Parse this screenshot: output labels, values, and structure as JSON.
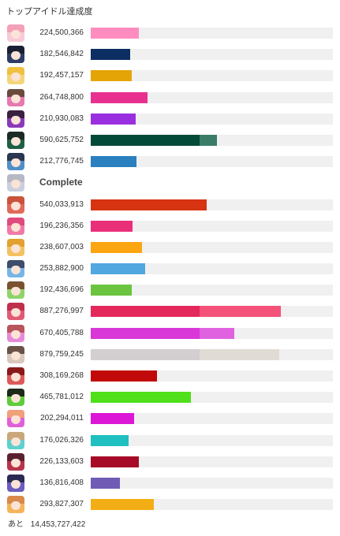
{
  "title": "トップアイドル達成度",
  "remaining_label": "あと",
  "remaining_value": "14,453,727,422",
  "target": 1000000000,
  "rows": [
    {
      "value": "224,500,366",
      "amount": 224500366,
      "color": "#ff8cbf",
      "over_color": "#ff8cbf",
      "avatar_bg": "#f7c9d9",
      "hair": "#f3a0b8"
    },
    {
      "value": "182,546,842",
      "amount": 182546842,
      "color": "#0c2e62",
      "over_color": "#0c2e62",
      "avatar_bg": "#2c3e66",
      "hair": "#1a1f33"
    },
    {
      "value": "192,457,157",
      "amount": 192457157,
      "color": "#e5a406",
      "over_color": "#e5a406",
      "avatar_bg": "#f4d57a",
      "hair": "#f0c040"
    },
    {
      "value": "264,748,800",
      "amount": 264748800,
      "color": "#e8308f",
      "over_color": "#e8308f",
      "avatar_bg": "#e67ab0",
      "hair": "#6b4a3e"
    },
    {
      "value": "210,930,083",
      "amount": 210930083,
      "color": "#9a2fe0",
      "over_color": "#9a2fe0",
      "avatar_bg": "#8a3ab9",
      "hair": "#3a2140"
    },
    {
      "value": "590,625,752",
      "amount": 590625752,
      "color": "#044a39",
      "over_color": "#3a7c68",
      "avatar_bg": "#1f5e48",
      "hair": "#1c2a24"
    },
    {
      "value": "212,776,745",
      "amount": 212776745,
      "color": "#2a7fbf",
      "over_color": "#2a7fbf",
      "avatar_bg": "#4f8fc7",
      "hair": "#2a3550"
    },
    {
      "complete": "Complete",
      "amount": 1000000000,
      "color": "#f0f0f0",
      "over_color": "#f0f0f0",
      "avatar_bg": "#c8d0de",
      "hair": "#b6b9c4"
    },
    {
      "value": "540,033,913",
      "amount": 540033913,
      "color": "#d63413",
      "over_color": "#d63413",
      "avatar_bg": "#e06a5a",
      "hair": "#c9543c"
    },
    {
      "value": "196,236,356",
      "amount": 196236356,
      "color": "#ea2f79",
      "over_color": "#ea2f79",
      "avatar_bg": "#f07aa5",
      "hair": "#e04a7e"
    },
    {
      "value": "238,607,003",
      "amount": 238607003,
      "color": "#fba511",
      "over_color": "#fba511",
      "avatar_bg": "#f3c261",
      "hair": "#e2a030"
    },
    {
      "value": "253,882,900",
      "amount": 253882900,
      "color": "#51a7e0",
      "over_color": "#51a7e0",
      "avatar_bg": "#78b5e6",
      "hair": "#3d4d6b"
    },
    {
      "value": "192,436,696",
      "amount": 192436696,
      "color": "#6ac43f",
      "over_color": "#6ac43f",
      "avatar_bg": "#8fd46a",
      "hair": "#7a5230"
    },
    {
      "value": "887,276,997",
      "amount": 887276997,
      "color": "#e4285b",
      "over_color": "#f45278",
      "avatar_bg": "#e05b74",
      "hair": "#c0304c"
    },
    {
      "value": "670,405,788",
      "amount": 670405788,
      "color": "#d937d6",
      "over_color": "#e062e0",
      "avatar_bg": "#e68ad9",
      "hair": "#b8545c"
    },
    {
      "value": "879,759,245",
      "amount": 879759245,
      "color": "#d3cfd0",
      "over_color": "#e1dbd6",
      "avatar_bg": "#d8c8bc",
      "hair": "#6a5246"
    },
    {
      "value": "308,169,268",
      "amount": 308169268,
      "color": "#c20909",
      "over_color": "#d43c3c",
      "avatar_bg": "#dd5a5a",
      "hair": "#8a1a1a"
    },
    {
      "value": "465,781,012",
      "amount": 465781012,
      "color": "#4fe01a",
      "over_color": "#4fe01a",
      "avatar_bg": "#5fcc3a",
      "hair": "#1e2a1a"
    },
    {
      "value": "202,294,011",
      "amount": 202294011,
      "color": "#dc17d5",
      "over_color": "#dc17d5",
      "avatar_bg": "#e060d8",
      "hair": "#f0a07a"
    },
    {
      "value": "176,026,326",
      "amount": 176026326,
      "color": "#20bfc0",
      "over_color": "#20bfc0",
      "avatar_bg": "#5fcfcf",
      "hair": "#c9a77a"
    },
    {
      "value": "226,133,603",
      "amount": 226133603,
      "color": "#a60a27",
      "over_color": "#c9364e",
      "avatar_bg": "#b8344a",
      "hair": "#5a2230"
    },
    {
      "value": "136,816,408",
      "amount": 136816408,
      "color": "#705cb4",
      "over_color": "#705cb4",
      "avatar_bg": "#6b5cc0",
      "hair": "#2a2a55"
    },
    {
      "value": "293,827,307",
      "amount": 293827307,
      "color": "#f2ae14",
      "over_color": "#f2ae14",
      "avatar_bg": "#f6b458",
      "hair": "#d98a4a"
    }
  ]
}
